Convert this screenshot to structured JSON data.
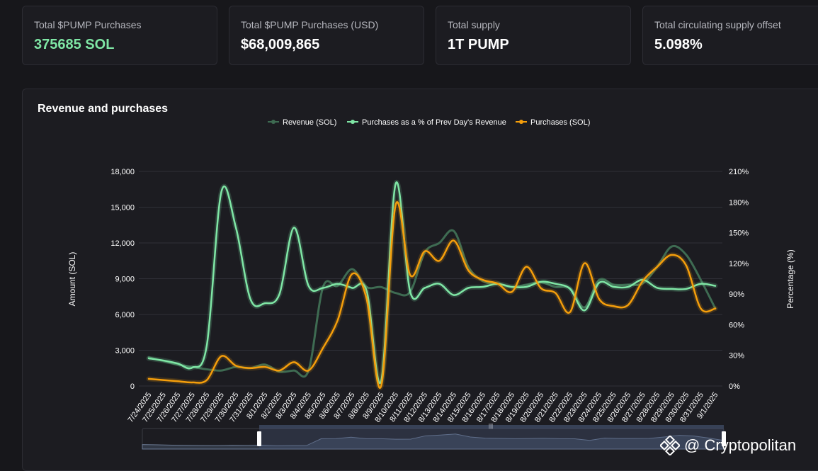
{
  "stats": [
    {
      "label": "Total $PUMP Purchases",
      "value": "375685 SOL",
      "accent": "#7fe6a5"
    },
    {
      "label": "Total $PUMP Purchases (USD)",
      "value": "$68,009,865"
    },
    {
      "label": "Total supply",
      "value": "1T PUMP"
    },
    {
      "label": "Total circulating supply offset",
      "value": "5.098%"
    }
  ],
  "watermark": "@ Cryptopolitan",
  "chart_data": {
    "type": "line",
    "title": "Revenue and purchases",
    "ylabel": "Amount (SOL)",
    "y2label": "Percentage (%)",
    "ylim": [
      0,
      18000
    ],
    "y2lim": [
      0,
      210
    ],
    "yticks": [
      "0",
      "3,000",
      "6,000",
      "9,000",
      "12,000",
      "15,000",
      "18,000"
    ],
    "y2ticks": [
      "0%",
      "30%",
      "60%",
      "90%",
      "120%",
      "150%",
      "180%",
      "210%"
    ],
    "x": [
      "7/24/2025",
      "7/25/2025",
      "7/26/2025",
      "7/27/2025",
      "7/28/2025",
      "7/29/2025",
      "7/30/2025",
      "7/31/2025",
      "8/1/2025",
      "8/2/2025",
      "8/3/2025",
      "8/4/2025",
      "8/5/2025",
      "8/6/2025",
      "8/7/2025",
      "8/8/2025",
      "8/9/2025",
      "8/10/2025",
      "8/11/2025",
      "8/12/2025",
      "8/13/2025",
      "8/14/2025",
      "8/15/2025",
      "8/16/2025",
      "8/17/2025",
      "8/18/2025",
      "8/19/2025",
      "8/20/2025",
      "8/21/2025",
      "8/22/2025",
      "8/23/2025",
      "8/24/2025",
      "8/25/2025",
      "8/26/2025",
      "8/27/2025",
      "8/28/2025",
      "8/29/2025",
      "8/30/2025",
      "8/31/2025",
      "9/1/2025"
    ],
    "grid": true,
    "legend_position": "top-center",
    "series": [
      {
        "name": "Revenue (SOL)",
        "axis": "left",
        "color": "#3e6b52",
        "values": [
          2400,
          2100,
          1800,
          1600,
          1400,
          1300,
          1600,
          1500,
          1800,
          1200,
          1300,
          1300,
          8300,
          8400,
          9800,
          8300,
          8300,
          7800,
          7900,
          11200,
          12000,
          13000,
          10000,
          8800,
          8600,
          8300,
          8500,
          8700,
          8300,
          8200,
          6600,
          8900,
          8500,
          8500,
          8600,
          10000,
          11700,
          11000,
          8900,
          6500
        ]
      },
      {
        "name": "Purchases as a % of Prev Day's Revenue",
        "axis": "right",
        "color": "#7fe6a5",
        "values": [
          27,
          25,
          22,
          18,
          40,
          190,
          155,
          85,
          81,
          90,
          155,
          98,
          96,
          100,
          96,
          93,
          5,
          198,
          92,
          96,
          100,
          89,
          96,
          97,
          100,
          97,
          97,
          102,
          100,
          95,
          74,
          101,
          97,
          97,
          104,
          96,
          95,
          95,
          100,
          98
        ]
      },
      {
        "name": "Purchases (SOL)",
        "axis": "left",
        "color": "#f59e0b",
        "values": [
          600,
          500,
          400,
          300,
          500,
          2500,
          1700,
          1500,
          1600,
          1300,
          2000,
          1300,
          3200,
          5500,
          9400,
          7300,
          0,
          15200,
          9300,
          11300,
          10500,
          12200,
          9700,
          8900,
          8600,
          7900,
          10000,
          8200,
          7800,
          6200,
          10300,
          7300,
          6700,
          6800,
          8800,
          10000,
          11000,
          10100,
          6500,
          6500
        ]
      }
    ]
  }
}
